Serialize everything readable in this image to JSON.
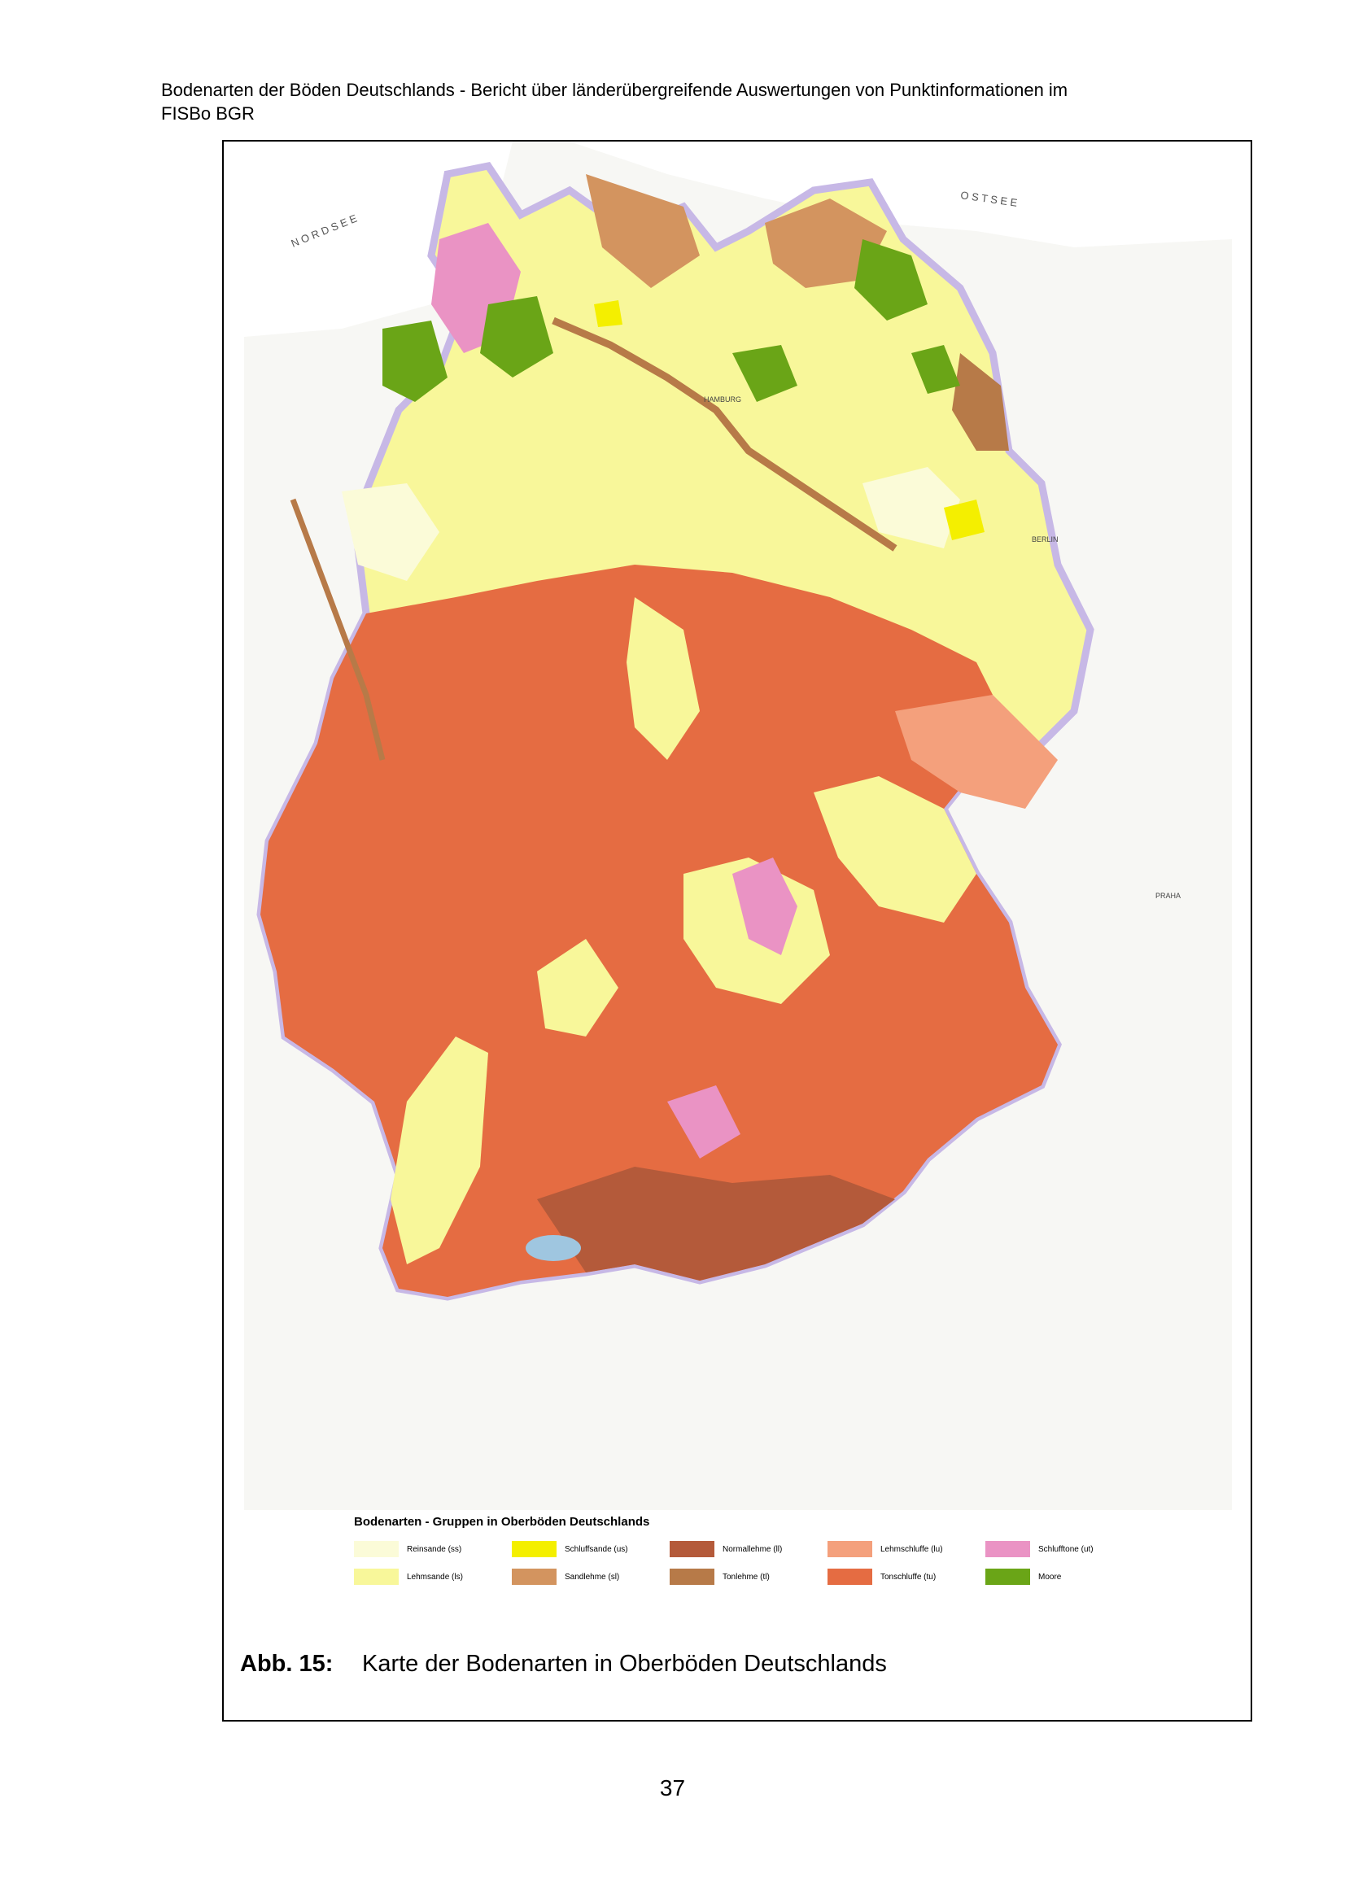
{
  "header": {
    "line1": "Bodenarten der Böden Deutschlands - Bericht über länderübergreifende Auswertungen von Punktinformationen im",
    "line2": "FISBo BGR"
  },
  "map": {
    "labels": {
      "nordsee": "N O R D S E E",
      "ostsee": "O S T S E E",
      "hamburg": "HAMBURG",
      "berlin": "BERLIN",
      "praha": "PRAHA"
    },
    "colors": {
      "sea": "#ffffff",
      "outside": "#f7f7f4",
      "border": "#c7b8e6",
      "rivers": "#9fc6e0"
    }
  },
  "legend": {
    "title": "Bodenarten - Gruppen in Oberböden Deutschlands",
    "items": [
      {
        "label": "Reinsande (ss)",
        "color": "#fbfbd8"
      },
      {
        "label": "Schluffsande (us)",
        "color": "#f4ef00"
      },
      {
        "label": "Normallehme (ll)",
        "color": "#b45a3a"
      },
      {
        "label": "Lehmschluffe (lu)",
        "color": "#f4a07c"
      },
      {
        "label": "Schlufftone (ut)",
        "color": "#ea93c4"
      },
      {
        "label": "Lehmsande (ls)",
        "color": "#f8f79a"
      },
      {
        "label": "Sandlehme (sl)",
        "color": "#d3945f"
      },
      {
        "label": "Tonlehme (tl)",
        "color": "#b77a48"
      },
      {
        "label": "Tonschluffe (tu)",
        "color": "#e56c42"
      },
      {
        "label": "Moore",
        "color": "#6aa517"
      }
    ]
  },
  "caption": {
    "number": "Abb. 15:",
    "text": "Karte der Bodenarten in Oberböden Deutschlands"
  },
  "page_number": "37"
}
